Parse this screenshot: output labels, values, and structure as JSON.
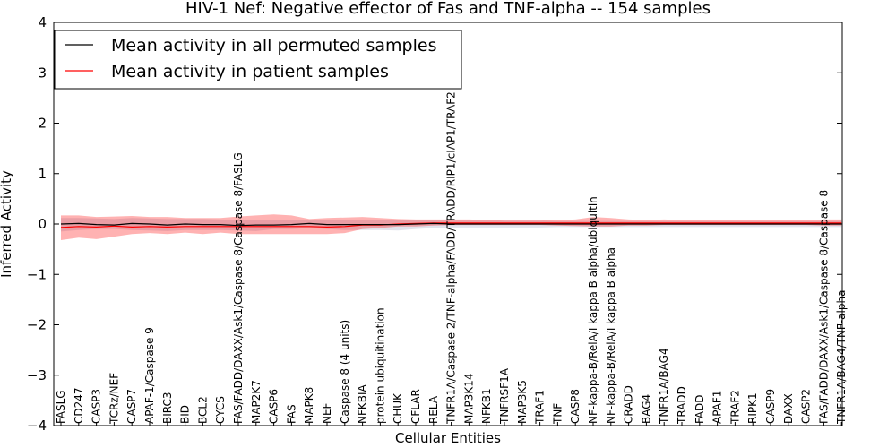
{
  "chart_data": {
    "type": "line",
    "title": "HIV-1 Nef: Negative effector of Fas and TNF-alpha -- 154 samples",
    "xlabel": "Cellular Entities",
    "ylabel": "Inferred Activity",
    "ylim": [
      -4,
      4
    ],
    "yticks": [
      "4",
      "3",
      "2",
      "1",
      "0",
      "−1",
      "−2",
      "−3",
      "−4"
    ],
    "grid": false,
    "legend_position": "top-left",
    "categories": [
      "FASLG",
      "CD247",
      "CASP3",
      "TCRz/NEF",
      "CASP7",
      "APAF-1/Caspase 9",
      "BIRC3",
      "BID",
      "BCL2",
      "CYCS",
      "FAS/FADD/DAXX/Ask1/Caspase 8/Caspase 8/FASLG",
      "MAP2K7",
      "CASP6",
      "FAS",
      "MAPK8",
      "NEF",
      "Caspase 8 (4 units)",
      "NFKBIA",
      "protein ubiquitination",
      "CHUK",
      "CFLAR",
      "RELA",
      "TNFR1A/Caspase 2/TNF-alpha/FADD/TRADD/RIP1/cIAP1/TRAF2",
      "MAP3K14",
      "NFKB1",
      "TNFRSF1A",
      "MAP3K5",
      "TRAF1",
      "TNF",
      "CASP8",
      "NF-kappa-B/RelA/I kappa B alpha/ubiquitin",
      "NF-kappa-B/RelA/I kappa B alpha",
      "CRADD",
      "BAG4",
      "TNFR1A/BAG4",
      "TRADD",
      "FADD",
      "APAF1",
      "TRAF2",
      "RIPK1",
      "CASP9",
      "DAXX",
      "CASP2",
      "FAS/FADD/DAXX/Ask1/Caspase 8/Caspase 8",
      "TNFR1A/BAG4/TNF-alpha"
    ],
    "series": [
      {
        "name": "Mean activity in all permuted samples",
        "color": "#000000",
        "values": [
          0.0,
          0.01,
          -0.01,
          -0.02,
          0.01,
          0.0,
          -0.02,
          0.0,
          -0.01,
          -0.01,
          -0.03,
          -0.02,
          -0.02,
          -0.01,
          0.01,
          -0.01,
          -0.01,
          -0.01,
          -0.01,
          -0.01,
          0.0,
          0.01,
          0.0,
          0.0,
          0.0,
          0.0,
          0.0,
          0.0,
          0.0,
          0.0,
          0.0,
          0.0,
          0.0,
          0.0,
          0.0,
          0.0,
          0.0,
          0.0,
          0.0,
          0.0,
          0.0,
          0.0,
          0.0,
          0.0,
          0.0
        ],
        "band_low": [
          -0.15,
          -0.12,
          -0.1,
          -0.1,
          -0.12,
          -0.13,
          -0.14,
          -0.12,
          -0.12,
          -0.12,
          -0.13,
          -0.14,
          -0.1,
          -0.1,
          -0.08,
          -0.1,
          -0.12,
          -0.12,
          -0.12,
          -0.13,
          -0.1,
          -0.08,
          -0.07,
          -0.07,
          -0.07,
          -0.07,
          -0.07,
          -0.07,
          -0.06,
          -0.06,
          -0.06,
          -0.06,
          -0.06,
          -0.06,
          -0.06,
          -0.06,
          -0.06,
          -0.06,
          -0.06,
          -0.06,
          -0.06,
          -0.06,
          -0.06,
          -0.06,
          -0.06
        ],
        "band_high": [
          0.12,
          0.12,
          0.11,
          0.1,
          0.12,
          0.11,
          0.1,
          0.1,
          0.1,
          0.09,
          0.08,
          0.08,
          0.08,
          0.08,
          0.08,
          0.08,
          0.08,
          0.08,
          0.08,
          0.08,
          0.08,
          0.08,
          0.07,
          0.07,
          0.07,
          0.07,
          0.07,
          0.07,
          0.06,
          0.06,
          0.06,
          0.06,
          0.06,
          0.06,
          0.06,
          0.06,
          0.06,
          0.06,
          0.06,
          0.06,
          0.06,
          0.06,
          0.06,
          0.06,
          0.06
        ],
        "band_color": "#c8ccdc"
      },
      {
        "name": "Mean activity in patient samples",
        "color": "#ff0000",
        "values": [
          -0.07,
          -0.05,
          -0.06,
          -0.04,
          -0.06,
          -0.05,
          -0.06,
          -0.05,
          -0.05,
          -0.05,
          -0.05,
          -0.05,
          -0.05,
          -0.05,
          -0.05,
          -0.06,
          -0.05,
          -0.02,
          -0.02,
          0.0,
          0.01,
          0.02,
          0.02,
          0.02,
          0.02,
          0.02,
          0.02,
          0.02,
          0.02,
          0.02,
          0.02,
          0.02,
          0.02,
          0.02,
          0.02,
          0.02,
          0.02,
          0.02,
          0.02,
          0.02,
          0.02,
          0.02,
          0.02,
          0.02,
          0.02
        ],
        "band_low": [
          -0.32,
          -0.27,
          -0.3,
          -0.25,
          -0.2,
          -0.18,
          -0.2,
          -0.17,
          -0.2,
          -0.17,
          -0.2,
          -0.2,
          -0.2,
          -0.2,
          -0.2,
          -0.2,
          -0.18,
          -0.1,
          -0.08,
          -0.05,
          -0.05,
          -0.03,
          -0.02,
          -0.02,
          -0.02,
          -0.02,
          -0.02,
          -0.02,
          -0.03,
          -0.04,
          -0.05,
          -0.05,
          -0.03,
          -0.03,
          -0.02,
          -0.02,
          -0.02,
          -0.02,
          -0.02,
          -0.02,
          -0.02,
          -0.02,
          -0.02,
          -0.03,
          -0.03
        ],
        "band_high": [
          0.17,
          0.17,
          0.14,
          0.15,
          0.16,
          0.14,
          0.14,
          0.12,
          0.12,
          0.12,
          0.15,
          0.17,
          0.19,
          0.17,
          0.1,
          0.12,
          0.13,
          0.14,
          0.12,
          0.1,
          0.09,
          0.09,
          0.09,
          0.09,
          0.08,
          0.07,
          0.07,
          0.07,
          0.08,
          0.09,
          0.14,
          0.12,
          0.09,
          0.08,
          0.09,
          0.08,
          0.08,
          0.08,
          0.08,
          0.08,
          0.08,
          0.08,
          0.08,
          0.09,
          0.09
        ],
        "band_color": "#ff0000"
      }
    ]
  }
}
